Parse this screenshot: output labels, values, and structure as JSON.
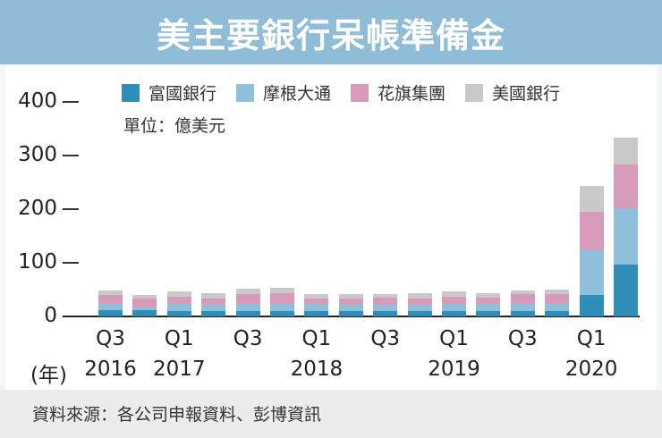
{
  "title": "美主要銀行呆帳準備金",
  "unit": "單位：億美元",
  "source": "資料來源：各公司申報資料、彭博資訊",
  "year_prefix": "(年)",
  "legend": [
    {
      "label": "富國銀行",
      "color": "#2f8db8"
    },
    {
      "label": "摩根大通",
      "color": "#8ec0dc"
    },
    {
      "label": "花旗集團",
      "color": "#d79ab8"
    },
    {
      "label": "美國銀行",
      "color": "#c9c9c9"
    }
  ],
  "y_ticks": [
    "400",
    "300",
    "200",
    "100",
    "0"
  ],
  "x_labels": [
    {
      "q": "Q3",
      "year": "2016",
      "index": 0
    },
    {
      "q": "Q1",
      "year": "2017",
      "index": 2
    },
    {
      "q": "Q3",
      "year": "",
      "index": 4
    },
    {
      "q": "Q1",
      "year": "2018",
      "index": 6
    },
    {
      "q": "Q3",
      "year": "",
      "index": 8
    },
    {
      "q": "Q1",
      "year": "2019",
      "index": 10
    },
    {
      "q": "Q3",
      "year": "",
      "index": 12
    },
    {
      "q": "Q1",
      "year": "2020",
      "index": 14
    }
  ],
  "chart_data": {
    "type": "bar",
    "stacked": true,
    "title": "美主要銀行呆帳準備金",
    "subtitle": "單位：億美元",
    "xlabel": "(年)",
    "ylabel": "",
    "ylim": [
      0,
      400
    ],
    "yticks": [
      0,
      100,
      200,
      300,
      400
    ],
    "grid": false,
    "legend_position": "top",
    "categories": [
      "2016Q3",
      "2016Q4",
      "2017Q1",
      "2017Q2",
      "2017Q3",
      "2017Q4",
      "2018Q1",
      "2018Q2",
      "2018Q3",
      "2018Q4",
      "2019Q1",
      "2019Q2",
      "2019Q3",
      "2019Q4",
      "2020Q1",
      "2020Q2"
    ],
    "series": [
      {
        "name": "富國銀行",
        "color": "#2f8db8",
        "values": [
          11,
          11,
          10,
          10,
          10,
          10,
          10,
          10,
          10,
          10,
          10,
          10,
          10,
          10,
          40,
          97
        ]
      },
      {
        "name": "摩根大通",
        "color": "#8ec0dc",
        "values": [
          13,
          6,
          13,
          11,
          13,
          14,
          13,
          12,
          12,
          12,
          14,
          14,
          13,
          14,
          83,
          105
        ]
      },
      {
        "name": "花旗集團",
        "color": "#d79ab8",
        "values": [
          16,
          17,
          13,
          13,
          19,
          19,
          11,
          12,
          13,
          12,
          13,
          11,
          18,
          17,
          72,
          81
        ]
      },
      {
        "name": "美國銀行",
        "color": "#c9c9c9",
        "values": [
          8,
          6,
          10,
          9,
          9,
          10,
          7,
          8,
          6,
          9,
          10,
          8,
          8,
          9,
          49,
          50
        ]
      }
    ]
  }
}
